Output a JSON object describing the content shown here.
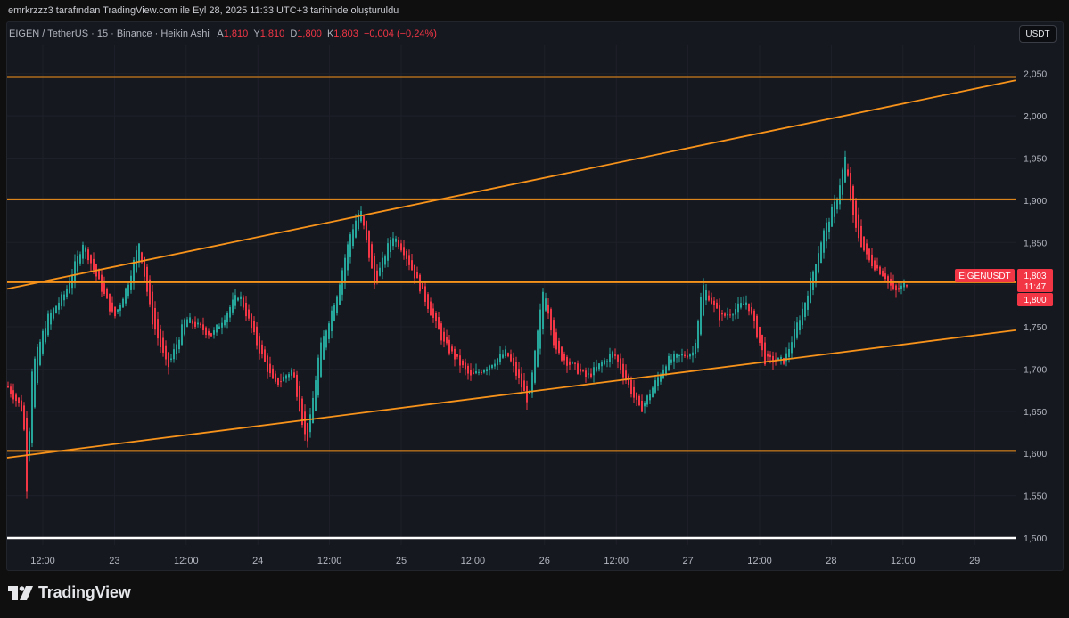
{
  "caption": "emrkrzzz3 tarafından TradingView.com ile Eyl 28, 2025 11:33 UTC+3 tarihinde oluşturuldu",
  "legend": {
    "symbol": "EIGEN / TetherUS · 15 · Binance · Heikin Ashi",
    "open_label": "A",
    "open": "1,810",
    "high_label": "Y",
    "high": "1,810",
    "low_label": "D",
    "low": "1,800",
    "close_label": "K",
    "close": "1,803",
    "change": "−0,004 (−0,24%)"
  },
  "currency_button": "USDT",
  "price_tag": {
    "symbol": "EIGENUSDT",
    "price": "1,803",
    "countdown": "11:47",
    "low": "1,800"
  },
  "brand": "TradingView",
  "colors": {
    "up": "#26a69a",
    "down": "#f23645",
    "level": "#f7931a",
    "background": "#161820"
  },
  "chart_data": {
    "type": "candlestick",
    "y_ticks": [
      "2,050",
      "2,000",
      "1,950",
      "1,900",
      "1,850",
      "1,800",
      "1,750",
      "1,700",
      "1,650",
      "1,600",
      "1,550",
      "1,500"
    ],
    "ylim": [
      1.5,
      2.065
    ],
    "x_ticks": [
      "12:00",
      "23",
      "12:00",
      "24",
      "12:00",
      "25",
      "12:00",
      "26",
      "12:00",
      "27",
      "12:00",
      "28",
      "12:00",
      "29"
    ],
    "horizontal_levels": [
      2.046,
      1.901,
      1.803,
      1.603
    ],
    "white_level": 1.5,
    "trendlines": [
      {
        "from": [
          "start",
          1.795
        ],
        "to": [
          "end",
          2.042
        ]
      },
      {
        "from": [
          "start",
          1.595
        ],
        "to": [
          "end",
          1.746
        ]
      }
    ],
    "path_anchors": [
      [
        0,
        1.68
      ],
      [
        18,
        1.65
      ],
      [
        22,
        1.56
      ],
      [
        28,
        1.7
      ],
      [
        45,
        1.76
      ],
      [
        65,
        1.79
      ],
      [
        85,
        1.85
      ],
      [
        100,
        1.81
      ],
      [
        120,
        1.76
      ],
      [
        135,
        1.8
      ],
      [
        148,
        1.85
      ],
      [
        162,
        1.76
      ],
      [
        180,
        1.7
      ],
      [
        200,
        1.76
      ],
      [
        230,
        1.74
      ],
      [
        260,
        1.79
      ],
      [
        280,
        1.73
      ],
      [
        300,
        1.68
      ],
      [
        320,
        1.7
      ],
      [
        336,
        1.61
      ],
      [
        350,
        1.72
      ],
      [
        370,
        1.79
      ],
      [
        385,
        1.86
      ],
      [
        396,
        1.89
      ],
      [
        412,
        1.8
      ],
      [
        432,
        1.86
      ],
      [
        445,
        1.84
      ],
      [
        470,
        1.78
      ],
      [
        490,
        1.73
      ],
      [
        520,
        1.69
      ],
      [
        560,
        1.72
      ],
      [
        585,
        1.66
      ],
      [
        602,
        1.8
      ],
      [
        615,
        1.72
      ],
      [
        650,
        1.69
      ],
      [
        680,
        1.72
      ],
      [
        710,
        1.65
      ],
      [
        740,
        1.71
      ],
      [
        770,
        1.72
      ],
      [
        780,
        1.8
      ],
      [
        800,
        1.76
      ],
      [
        830,
        1.78
      ],
      [
        850,
        1.71
      ],
      [
        872,
        1.71
      ],
      [
        895,
        1.78
      ],
      [
        915,
        1.86
      ],
      [
        930,
        1.9
      ],
      [
        940,
        1.95
      ],
      [
        950,
        1.87
      ],
      [
        965,
        1.83
      ],
      [
        985,
        1.81
      ],
      [
        995,
        1.79
      ],
      [
        1010,
        1.803
      ]
    ]
  }
}
